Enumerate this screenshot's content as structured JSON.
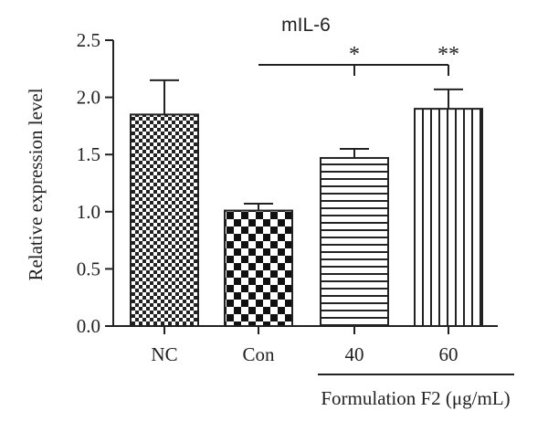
{
  "chart_data": {
    "type": "bar",
    "title": "mIL-6",
    "ylabel": "Relative expression level",
    "xlabel": "",
    "ylim": [
      0,
      2.5
    ],
    "yticks": [
      "0.0",
      "0.5",
      "1.0",
      "1.5",
      "2.0",
      "2.5"
    ],
    "categories": [
      "NC",
      "Con",
      "40",
      "60"
    ],
    "values": [
      1.85,
      1.01,
      1.47,
      1.9
    ],
    "errors": [
      0.3,
      0.06,
      0.08,
      0.17
    ],
    "patterns": [
      "fine-checker",
      "coarse-checker",
      "horizontal-lines",
      "vertical-lines"
    ],
    "group_label": "Formulation F2 (μg/mL)",
    "group_categories": [
      "40",
      "60"
    ],
    "significance": [
      {
        "compare": [
          "Con",
          "40"
        ],
        "label": "*"
      },
      {
        "compare": [
          "Con",
          "60"
        ],
        "label": "**"
      }
    ],
    "grid": false,
    "legend": "none"
  }
}
